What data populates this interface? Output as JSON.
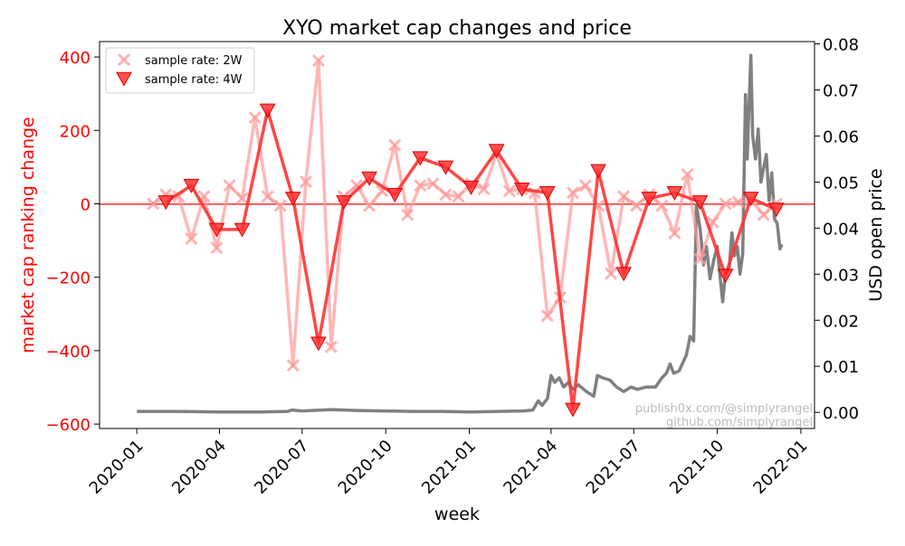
{
  "chart_data": {
    "type": "line",
    "title": "XYO market cap changes and price",
    "xlabel": "week",
    "ylabel_left": "market cap ranking change",
    "ylabel_right": "USD open price",
    "xlim": [
      "2019-11-21",
      "2022-01-16"
    ],
    "ylim_left": [
      -612,
      442
    ],
    "ylim_right": [
      -0.0035,
      0.0805
    ],
    "x_ticks": [
      "2020-01",
      "2020-04",
      "2020-07",
      "2020-10",
      "2021-01",
      "2021-04",
      "2021-07",
      "2021-10",
      "2022-01"
    ],
    "y_ticks_left": [
      "−600",
      "−400",
      "−200",
      "0",
      "200",
      "400"
    ],
    "y_ticks_right": [
      "0.00",
      "0.01",
      "0.02",
      "0.03",
      "0.04",
      "0.05",
      "0.06",
      "0.07",
      "0.08"
    ],
    "zero_line": 0,
    "legend_position": "top-left",
    "colors": {
      "left_axis": "#ff0000",
      "series_2w": "#ff9999",
      "series_4w": "#ff3333",
      "price": "#808080",
      "zero_line": "#ff0000",
      "watermark": "#bbbbbb"
    },
    "series": [
      {
        "name": "sample rate: 2W",
        "marker": "x",
        "points": [
          [
            "2020-01-19",
            0
          ],
          [
            "2020-02-02",
            25
          ],
          [
            "2020-02-16",
            20
          ],
          [
            "2020-03-01",
            -95
          ],
          [
            "2020-03-15",
            20
          ],
          [
            "2020-03-29",
            -120
          ],
          [
            "2020-04-12",
            50
          ],
          [
            "2020-04-26",
            15
          ],
          [
            "2020-05-10",
            235
          ],
          [
            "2020-05-24",
            20
          ],
          [
            "2020-06-07",
            -5
          ],
          [
            "2020-06-21",
            -440
          ],
          [
            "2020-07-05",
            60
          ],
          [
            "2020-07-19",
            390
          ],
          [
            "2020-08-02",
            -390
          ],
          [
            "2020-08-16",
            20
          ],
          [
            "2020-08-30",
            50
          ],
          [
            "2020-09-13",
            -5
          ],
          [
            "2020-09-27",
            35
          ],
          [
            "2020-10-11",
            160
          ],
          [
            "2020-10-25",
            -30
          ],
          [
            "2020-11-08",
            50
          ],
          [
            "2020-11-22",
            55
          ],
          [
            "2020-12-06",
            25
          ],
          [
            "2020-12-20",
            20
          ],
          [
            "2021-01-03",
            55
          ],
          [
            "2021-01-17",
            40
          ],
          [
            "2021-01-31",
            135
          ],
          [
            "2021-02-14",
            35
          ],
          [
            "2021-02-28",
            40
          ],
          [
            "2021-03-14",
            30
          ],
          [
            "2021-03-28",
            -305
          ],
          [
            "2021-04-11",
            -255
          ],
          [
            "2021-04-25",
            30
          ],
          [
            "2021-05-09",
            50
          ],
          [
            "2021-05-23",
            -5
          ],
          [
            "2021-06-06",
            -190
          ],
          [
            "2021-06-20",
            20
          ],
          [
            "2021-07-04",
            -5
          ],
          [
            "2021-07-18",
            25
          ],
          [
            "2021-08-01",
            -5
          ],
          [
            "2021-08-15",
            -80
          ],
          [
            "2021-08-29",
            80
          ],
          [
            "2021-09-12",
            -150
          ],
          [
            "2021-09-26",
            -50
          ],
          [
            "2021-10-10",
            0
          ],
          [
            "2021-10-24",
            5
          ],
          [
            "2021-11-07",
            10
          ],
          [
            "2021-11-21",
            -30
          ],
          [
            "2021-12-05",
            0
          ]
        ]
      },
      {
        "name": "sample rate: 4W",
        "marker": "triangle-down",
        "points": [
          [
            "2020-02-02",
            5
          ],
          [
            "2020-03-01",
            50
          ],
          [
            "2020-03-29",
            -70
          ],
          [
            "2020-04-26",
            -70
          ],
          [
            "2020-05-24",
            255
          ],
          [
            "2020-06-21",
            15
          ],
          [
            "2020-07-19",
            -380
          ],
          [
            "2020-08-16",
            5
          ],
          [
            "2020-09-13",
            70
          ],
          [
            "2020-10-11",
            25
          ],
          [
            "2020-11-08",
            125
          ],
          [
            "2020-12-06",
            100
          ],
          [
            "2021-01-03",
            45
          ],
          [
            "2021-01-31",
            145
          ],
          [
            "2021-02-28",
            40
          ],
          [
            "2021-03-28",
            30
          ],
          [
            "2021-04-25",
            -560
          ],
          [
            "2021-05-23",
            90
          ],
          [
            "2021-06-20",
            -190
          ],
          [
            "2021-07-18",
            15
          ],
          [
            "2021-08-15",
            30
          ],
          [
            "2021-09-12",
            5
          ],
          [
            "2021-10-10",
            -195
          ],
          [
            "2021-11-07",
            15
          ],
          [
            "2021-12-05",
            -15
          ]
        ]
      },
      {
        "name": "USD open price",
        "axis": "right",
        "points": [
          [
            "2020-01-01",
            0.0002
          ],
          [
            "2020-02-15",
            0.0002
          ],
          [
            "2020-04-01",
            0.0001
          ],
          [
            "2020-05-15",
            0.0001
          ],
          [
            "2020-06-15",
            0.0002
          ],
          [
            "2020-06-20",
            0.0005
          ],
          [
            "2020-07-01",
            0.0003
          ],
          [
            "2020-08-01",
            0.0006
          ],
          [
            "2020-09-01",
            0.0004
          ],
          [
            "2020-10-01",
            0.0003
          ],
          [
            "2020-11-01",
            0.0002
          ],
          [
            "2020-12-01",
            0.0002
          ],
          [
            "2021-01-01",
            0.0001
          ],
          [
            "2021-02-01",
            0.0002
          ],
          [
            "2021-03-01",
            0.0003
          ],
          [
            "2021-03-12",
            0.0005
          ],
          [
            "2021-03-18",
            0.0025
          ],
          [
            "2021-03-22",
            0.0015
          ],
          [
            "2021-03-28",
            0.003
          ],
          [
            "2021-04-01",
            0.008
          ],
          [
            "2021-04-05",
            0.0065
          ],
          [
            "2021-04-10",
            0.0075
          ],
          [
            "2021-04-15",
            0.0055
          ],
          [
            "2021-04-20",
            0.0065
          ],
          [
            "2021-04-25",
            0.005
          ],
          [
            "2021-05-01",
            0.006
          ],
          [
            "2021-05-10",
            0.0045
          ],
          [
            "2021-05-18",
            0.0035
          ],
          [
            "2021-05-22",
            0.008
          ],
          [
            "2021-05-28",
            0.0075
          ],
          [
            "2021-06-05",
            0.007
          ],
          [
            "2021-06-12",
            0.0055
          ],
          [
            "2021-06-20",
            0.0045
          ],
          [
            "2021-06-28",
            0.0055
          ],
          [
            "2021-07-05",
            0.005
          ],
          [
            "2021-07-15",
            0.0055
          ],
          [
            "2021-07-25",
            0.0055
          ],
          [
            "2021-08-01",
            0.0075
          ],
          [
            "2021-08-06",
            0.0085
          ],
          [
            "2021-08-10",
            0.0105
          ],
          [
            "2021-08-14",
            0.0085
          ],
          [
            "2021-08-20",
            0.009
          ],
          [
            "2021-08-28",
            0.0125
          ],
          [
            "2021-09-01",
            0.0165
          ],
          [
            "2021-09-05",
            0.0155
          ],
          [
            "2021-09-08",
            0.045
          ],
          [
            "2021-09-12",
            0.04
          ],
          [
            "2021-09-16",
            0.032
          ],
          [
            "2021-09-19",
            0.036
          ],
          [
            "2021-09-23",
            0.029
          ],
          [
            "2021-09-27",
            0.033
          ],
          [
            "2021-10-01",
            0.036
          ],
          [
            "2021-10-04",
            0.0295
          ],
          [
            "2021-10-07",
            0.024
          ],
          [
            "2021-10-10",
            0.0305
          ],
          [
            "2021-10-14",
            0.031
          ],
          [
            "2021-10-17",
            0.039
          ],
          [
            "2021-10-20",
            0.034
          ],
          [
            "2021-10-23",
            0.036
          ],
          [
            "2021-10-26",
            0.03
          ],
          [
            "2021-10-29",
            0.0345
          ],
          [
            "2021-11-01",
            0.069
          ],
          [
            "2021-11-03",
            0.055
          ],
          [
            "2021-11-05",
            0.067
          ],
          [
            "2021-11-07",
            0.0775
          ],
          [
            "2021-11-09",
            0.06
          ],
          [
            "2021-11-12",
            0.055
          ],
          [
            "2021-11-15",
            0.0615
          ],
          [
            "2021-11-18",
            0.05
          ],
          [
            "2021-11-21",
            0.053
          ],
          [
            "2021-11-24",
            0.056
          ],
          [
            "2021-11-27",
            0.046
          ],
          [
            "2021-11-30",
            0.052
          ],
          [
            "2021-12-03",
            0.042
          ],
          [
            "2021-12-06",
            0.041
          ],
          [
            "2021-12-09",
            0.0355
          ],
          [
            "2021-12-11",
            0.0365
          ]
        ]
      }
    ],
    "watermark": [
      "publish0x.com/@simplyrangel",
      "github.com/simplyrangel"
    ]
  }
}
